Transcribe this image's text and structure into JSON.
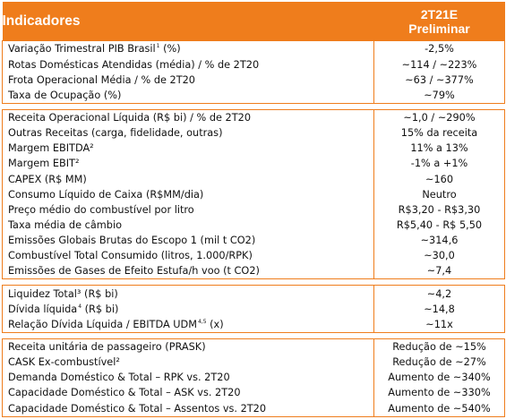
{
  "header": {
    "title": "Indicadores",
    "period_line1": "2T21E",
    "period_line2": "Preliminar"
  },
  "sections": [
    {
      "name": "operacional",
      "rows": [
        {
          "label": "Variação Trimestral PIB Brasil",
          "sup": "1",
          "suffix": " (%)",
          "value": "-2,5%"
        },
        {
          "label": "Rotas Domésticas Atendidas (média) / % de 2T20",
          "value": "~114 / ~223%"
        },
        {
          "label": "Frota Operacional Média / % de 2T20",
          "value": "~63 / ~377%"
        },
        {
          "label": "Taxa de Ocupação (%)",
          "value": "~79%"
        }
      ]
    },
    {
      "name": "financeiro",
      "rows": [
        {
          "label": "Receita Operacional Líquida (R$ bi) / % de 2T20",
          "value": "~1,0 / ~290%"
        },
        {
          "label": "Outras Receitas (carga, fidelidade, outras)",
          "value": "15% da receita"
        },
        {
          "label": "Margem EBITDA²",
          "value": "11% a 13%"
        },
        {
          "label": "Margem EBIT²",
          "value": "-1% a +1%"
        },
        {
          "label": "CAPEX (R$ MM)",
          "value": "~160"
        },
        {
          "label": "Consumo Líquido de Caixa (R$MM/dia)",
          "value": "Neutro"
        },
        {
          "label": "Preço médio do combustível por litro",
          "value": "R$3,20 - R$3,30"
        },
        {
          "label": "Taxa média de câmbio",
          "value": "R$5,40 - R$ 5,50"
        },
        {
          "label": "Emissões Globais Brutas do Escopo 1 (mil t CO2)",
          "value": "~314,6"
        },
        {
          "label": "Combustível Total Consumido (litros, 1.000/RPK)",
          "value": "~30,0"
        },
        {
          "label": "Emissões de Gases de Efeito Estufa/h voo (t CO2)",
          "value": "~7,4"
        }
      ]
    },
    {
      "name": "endividamento",
      "rows": [
        {
          "label": "Liquidez Total³ (R$ bi)",
          "value": "~4,2"
        },
        {
          "label": "Dívida líquida",
          "sup": "4",
          "suffix": " (R$ bi)",
          "value": "~14,8"
        },
        {
          "label": "Relação Dívida Líquida / EBITDA UDM",
          "sup": "4,5",
          "suffix": " (x)",
          "value": "~11x"
        }
      ]
    },
    {
      "name": "unitarios",
      "rows": [
        {
          "label": "Receita unitária de passageiro (PRASK)",
          "value": "Redução de ~15%"
        },
        {
          "label": "CASK Ex-combustível²",
          "value": "Redução de ~27%"
        },
        {
          "label": "Demanda Doméstico & Total – RPK vs. 2T20",
          "value": "Aumento de ~340%"
        },
        {
          "label": "Capacidade Doméstico & Total – ASK vs. 2T20",
          "value": "Aumento de ~330%"
        },
        {
          "label": "Capacidade Doméstico & Total – Assentos vs. 2T20",
          "value": "Aumento de ~540%"
        }
      ]
    }
  ],
  "colors": {
    "accent": "#ef7d1c",
    "header_text": "#ffffff"
  }
}
